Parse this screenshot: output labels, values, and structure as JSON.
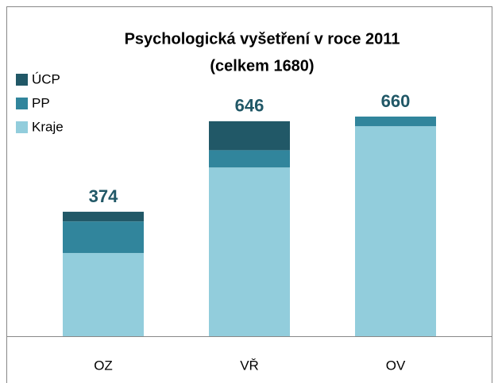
{
  "chart_data": {
    "type": "stacked_bar",
    "title": [
      "Psychologická vyšetření v roce 2011",
      "(celkem 1680)"
    ],
    "categories": [
      "OZ",
      "VŘ",
      "OV"
    ],
    "series": [
      {
        "name": "Kraje",
        "color": "#92cddc",
        "values": [
          250,
          507,
          631
        ]
      },
      {
        "name": "PP",
        "color": "#31859c",
        "values": [
          95,
          52,
          29
        ]
      },
      {
        "name": "ÚCP",
        "color": "#215867",
        "values": [
          29,
          87,
          0
        ]
      }
    ],
    "totals": [
      374,
      646,
      660
    ],
    "legend": "top-left"
  }
}
